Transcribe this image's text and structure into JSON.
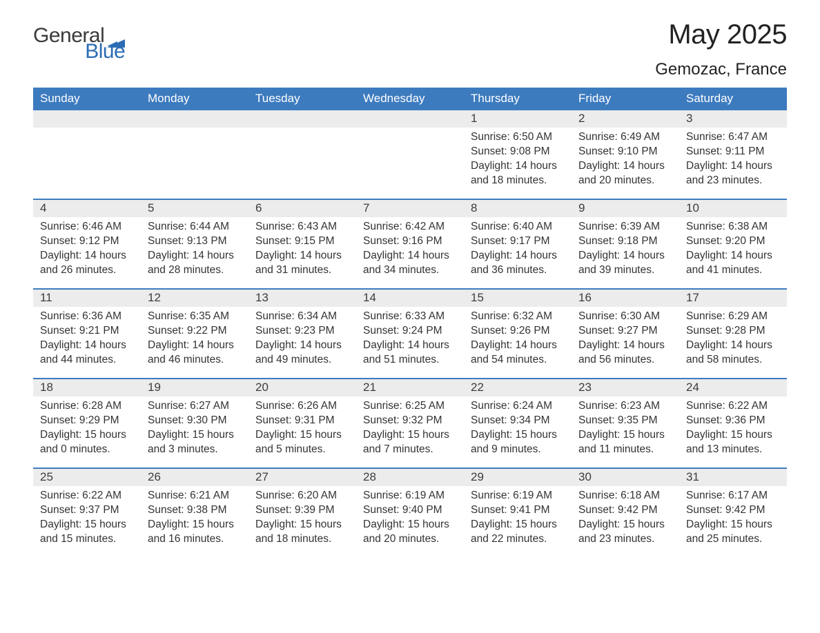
{
  "brand": {
    "word1": "General",
    "word2": "Blue",
    "flag_color": "#2b6cb3",
    "text_color": "#3a3a3a"
  },
  "title": "May 2025",
  "location": "Gemozac, France",
  "colors": {
    "header_bg": "#3d7bbf",
    "header_text": "#ffffff",
    "daynum_bg": "#ececec",
    "body_text": "#333333",
    "rule": "#3d7bbf",
    "page_bg": "#ffffff"
  },
  "weekdays": [
    "Sunday",
    "Monday",
    "Tuesday",
    "Wednesday",
    "Thursday",
    "Friday",
    "Saturday"
  ],
  "weeks": [
    [
      null,
      null,
      null,
      null,
      {
        "n": "1",
        "sunrise": "Sunrise: 6:50 AM",
        "sunset": "Sunset: 9:08 PM",
        "daylight": "Daylight: 14 hours and 18 minutes."
      },
      {
        "n": "2",
        "sunrise": "Sunrise: 6:49 AM",
        "sunset": "Sunset: 9:10 PM",
        "daylight": "Daylight: 14 hours and 20 minutes."
      },
      {
        "n": "3",
        "sunrise": "Sunrise: 6:47 AM",
        "sunset": "Sunset: 9:11 PM",
        "daylight": "Daylight: 14 hours and 23 minutes."
      }
    ],
    [
      {
        "n": "4",
        "sunrise": "Sunrise: 6:46 AM",
        "sunset": "Sunset: 9:12 PM",
        "daylight": "Daylight: 14 hours and 26 minutes."
      },
      {
        "n": "5",
        "sunrise": "Sunrise: 6:44 AM",
        "sunset": "Sunset: 9:13 PM",
        "daylight": "Daylight: 14 hours and 28 minutes."
      },
      {
        "n": "6",
        "sunrise": "Sunrise: 6:43 AM",
        "sunset": "Sunset: 9:15 PM",
        "daylight": "Daylight: 14 hours and 31 minutes."
      },
      {
        "n": "7",
        "sunrise": "Sunrise: 6:42 AM",
        "sunset": "Sunset: 9:16 PM",
        "daylight": "Daylight: 14 hours and 34 minutes."
      },
      {
        "n": "8",
        "sunrise": "Sunrise: 6:40 AM",
        "sunset": "Sunset: 9:17 PM",
        "daylight": "Daylight: 14 hours and 36 minutes."
      },
      {
        "n": "9",
        "sunrise": "Sunrise: 6:39 AM",
        "sunset": "Sunset: 9:18 PM",
        "daylight": "Daylight: 14 hours and 39 minutes."
      },
      {
        "n": "10",
        "sunrise": "Sunrise: 6:38 AM",
        "sunset": "Sunset: 9:20 PM",
        "daylight": "Daylight: 14 hours and 41 minutes."
      }
    ],
    [
      {
        "n": "11",
        "sunrise": "Sunrise: 6:36 AM",
        "sunset": "Sunset: 9:21 PM",
        "daylight": "Daylight: 14 hours and 44 minutes."
      },
      {
        "n": "12",
        "sunrise": "Sunrise: 6:35 AM",
        "sunset": "Sunset: 9:22 PM",
        "daylight": "Daylight: 14 hours and 46 minutes."
      },
      {
        "n": "13",
        "sunrise": "Sunrise: 6:34 AM",
        "sunset": "Sunset: 9:23 PM",
        "daylight": "Daylight: 14 hours and 49 minutes."
      },
      {
        "n": "14",
        "sunrise": "Sunrise: 6:33 AM",
        "sunset": "Sunset: 9:24 PM",
        "daylight": "Daylight: 14 hours and 51 minutes."
      },
      {
        "n": "15",
        "sunrise": "Sunrise: 6:32 AM",
        "sunset": "Sunset: 9:26 PM",
        "daylight": "Daylight: 14 hours and 54 minutes."
      },
      {
        "n": "16",
        "sunrise": "Sunrise: 6:30 AM",
        "sunset": "Sunset: 9:27 PM",
        "daylight": "Daylight: 14 hours and 56 minutes."
      },
      {
        "n": "17",
        "sunrise": "Sunrise: 6:29 AM",
        "sunset": "Sunset: 9:28 PM",
        "daylight": "Daylight: 14 hours and 58 minutes."
      }
    ],
    [
      {
        "n": "18",
        "sunrise": "Sunrise: 6:28 AM",
        "sunset": "Sunset: 9:29 PM",
        "daylight": "Daylight: 15 hours and 0 minutes."
      },
      {
        "n": "19",
        "sunrise": "Sunrise: 6:27 AM",
        "sunset": "Sunset: 9:30 PM",
        "daylight": "Daylight: 15 hours and 3 minutes."
      },
      {
        "n": "20",
        "sunrise": "Sunrise: 6:26 AM",
        "sunset": "Sunset: 9:31 PM",
        "daylight": "Daylight: 15 hours and 5 minutes."
      },
      {
        "n": "21",
        "sunrise": "Sunrise: 6:25 AM",
        "sunset": "Sunset: 9:32 PM",
        "daylight": "Daylight: 15 hours and 7 minutes."
      },
      {
        "n": "22",
        "sunrise": "Sunrise: 6:24 AM",
        "sunset": "Sunset: 9:34 PM",
        "daylight": "Daylight: 15 hours and 9 minutes."
      },
      {
        "n": "23",
        "sunrise": "Sunrise: 6:23 AM",
        "sunset": "Sunset: 9:35 PM",
        "daylight": "Daylight: 15 hours and 11 minutes."
      },
      {
        "n": "24",
        "sunrise": "Sunrise: 6:22 AM",
        "sunset": "Sunset: 9:36 PM",
        "daylight": "Daylight: 15 hours and 13 minutes."
      }
    ],
    [
      {
        "n": "25",
        "sunrise": "Sunrise: 6:22 AM",
        "sunset": "Sunset: 9:37 PM",
        "daylight": "Daylight: 15 hours and 15 minutes."
      },
      {
        "n": "26",
        "sunrise": "Sunrise: 6:21 AM",
        "sunset": "Sunset: 9:38 PM",
        "daylight": "Daylight: 15 hours and 16 minutes."
      },
      {
        "n": "27",
        "sunrise": "Sunrise: 6:20 AM",
        "sunset": "Sunset: 9:39 PM",
        "daylight": "Daylight: 15 hours and 18 minutes."
      },
      {
        "n": "28",
        "sunrise": "Sunrise: 6:19 AM",
        "sunset": "Sunset: 9:40 PM",
        "daylight": "Daylight: 15 hours and 20 minutes."
      },
      {
        "n": "29",
        "sunrise": "Sunrise: 6:19 AM",
        "sunset": "Sunset: 9:41 PM",
        "daylight": "Daylight: 15 hours and 22 minutes."
      },
      {
        "n": "30",
        "sunrise": "Sunrise: 6:18 AM",
        "sunset": "Sunset: 9:42 PM",
        "daylight": "Daylight: 15 hours and 23 minutes."
      },
      {
        "n": "31",
        "sunrise": "Sunrise: 6:17 AM",
        "sunset": "Sunset: 9:42 PM",
        "daylight": "Daylight: 15 hours and 25 minutes."
      }
    ]
  ]
}
